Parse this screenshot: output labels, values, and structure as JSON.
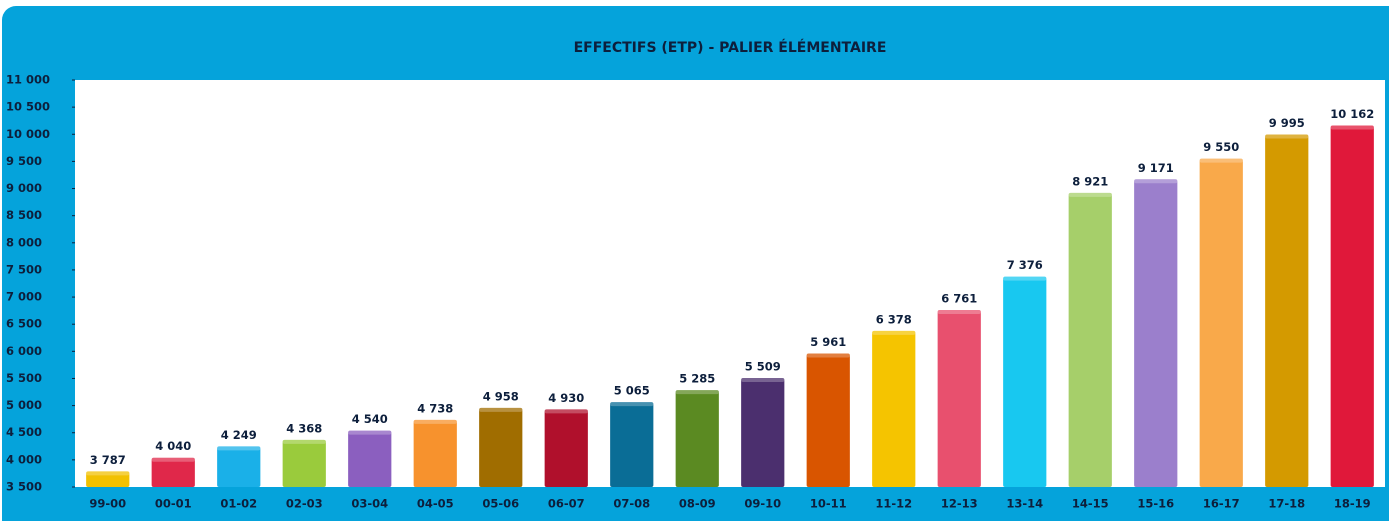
{
  "chart_data": {
    "type": "bar",
    "title": "EFFECTIFS (ETP) - PALIER ÉLÉMENTAIRE",
    "categories": [
      "99-00",
      "00-01",
      "01-02",
      "02-03",
      "03-04",
      "04-05",
      "05-06",
      "06-07",
      "07-08",
      "08-09",
      "09-10",
      "10-11",
      "11-12",
      "12-13",
      "13-14",
      "14-15",
      "15-16",
      "16-17",
      "17-18",
      "18-19"
    ],
    "values": [
      3787,
      4040,
      4249,
      4368,
      4540,
      4738,
      4958,
      4930,
      5065,
      5285,
      5509,
      5961,
      6378,
      6761,
      7376,
      8921,
      9171,
      9550,
      9995,
      10162
    ],
    "value_labels": [
      "3 787",
      "4 040",
      "4 249",
      "4 368",
      "4 540",
      "4 738",
      "4 958",
      "4 930",
      "5 065",
      "5 285",
      "5 509",
      "5 961",
      "6 378",
      "6 761",
      "7 376",
      "8 921",
      "9 171",
      "9 550",
      "9 995",
      "10 162"
    ],
    "colors": [
      "#f2c100",
      "#e0284a",
      "#1ab0e8",
      "#9acb3c",
      "#8b5fbf",
      "#f7922d",
      "#a06d00",
      "#b0102c",
      "#0a6d96",
      "#5b8a22",
      "#4b2f6e",
      "#d95500",
      "#f5c400",
      "#e8506e",
      "#18c8f0",
      "#a6cf6a",
      "#9b7fcc",
      "#f9a94a",
      "#d49a00",
      "#e0183a"
    ],
    "ylim": [
      3500,
      11000
    ],
    "yticks": [
      {
        "value": 3500,
        "label": "3 500"
      },
      {
        "value": 4000,
        "label": "4 000"
      },
      {
        "value": 4500,
        "label": "4 500"
      },
      {
        "value": 5000,
        "label": "5 000"
      },
      {
        "value": 5500,
        "label": "5 500"
      },
      {
        "value": 6000,
        "label": "6 000"
      },
      {
        "value": 6500,
        "label": "6 500"
      },
      {
        "value": 7000,
        "label": "7 000"
      },
      {
        "value": 7500,
        "label": "7 500"
      },
      {
        "value": 8000,
        "label": "8 000"
      },
      {
        "value": 8500,
        "label": "8 500"
      },
      {
        "value": 9000,
        "label": "9 000"
      },
      {
        "value": 9500,
        "label": "9 500"
      },
      {
        "value": 10000,
        "label": "10 000"
      },
      {
        "value": 10500,
        "label": "10 500"
      },
      {
        "value": 11000,
        "label": "11 000"
      }
    ]
  }
}
